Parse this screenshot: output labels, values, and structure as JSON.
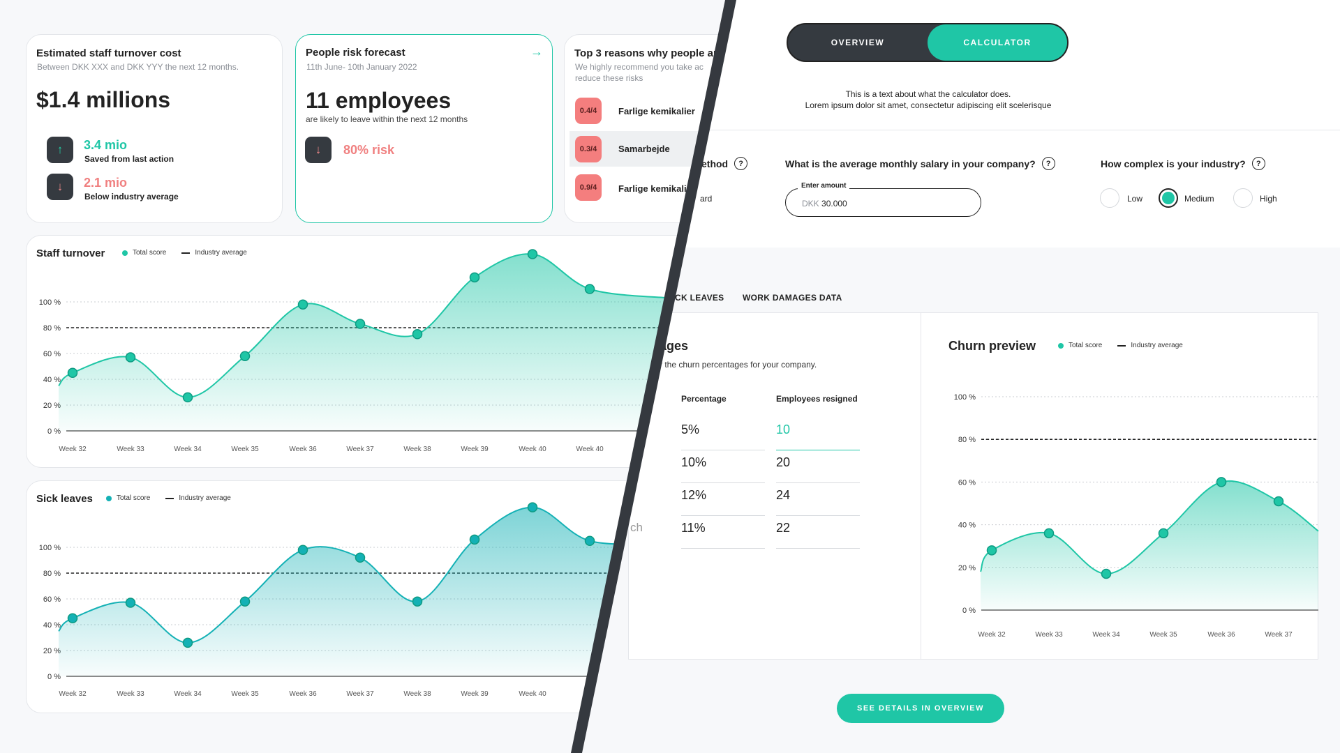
{
  "cards": {
    "turnover": {
      "title": "Estimated staff turnover cost",
      "subtitle": "Between DKK XXX and DKK YYY the next 12 months.",
      "value": "$1.4 millions",
      "saved": {
        "value": "3.4 mio",
        "label": "Saved from last action",
        "icon": "arrow-up-icon"
      },
      "below": {
        "value": "2.1 mio",
        "label": "Below industry average",
        "icon": "arrow-down-icon"
      }
    },
    "forecast": {
      "title": "People risk forecast",
      "subtitle": "11th June- 10th January 2022",
      "value": "11 employees",
      "desc": "are likely to leave within the next 12 months",
      "risk": "80% risk",
      "icon": "arrow-right-icon"
    },
    "reasons": {
      "title": "Top 3 reasons why people ar",
      "subtitle_1": "We highly recommend you take ac",
      "subtitle_2": "reduce these risks",
      "items": [
        {
          "score": "0.4/4",
          "label": "Farlige kemikalier"
        },
        {
          "score": "0.3/4",
          "label": "Samarbejde"
        },
        {
          "score": "0.9/4",
          "label": "Farlige kemikali"
        }
      ]
    }
  },
  "legend": {
    "total": "Total score",
    "industry": "Industry average"
  },
  "chart_data": [
    {
      "type": "area",
      "title": "Staff turnover",
      "categories": [
        "Week 32",
        "Week 33",
        "Week 34",
        "Week 35",
        "Week 36",
        "Week 37",
        "Week 38",
        "Week 39",
        "Week 40",
        "Week 40"
      ],
      "y_tick_labels": [
        "100 %",
        "80 %",
        "60 %",
        "40 %",
        "20 %",
        "0 %"
      ],
      "series": [
        {
          "name": "Total score",
          "values": [
            45,
            57,
            26,
            58,
            98,
            83,
            75,
            119,
            137,
            110
          ]
        }
      ],
      "industry_average": 80,
      "ylim": [
        0,
        140
      ],
      "color": "#1fc6a6"
    },
    {
      "type": "area",
      "title": "Sick leaves",
      "categories": [
        "Week 32",
        "Week 33",
        "Week 34",
        "Week 35",
        "Week 36",
        "Week 37",
        "Week 38",
        "Week 39",
        "Week 40",
        "W"
      ],
      "y_tick_labels": [
        "100 %",
        "80 %",
        "60 %",
        "40 %",
        "20 %",
        "0 %"
      ],
      "series": [
        {
          "name": "Total score",
          "values": [
            45,
            57,
            26,
            58,
            98,
            92,
            58,
            106,
            131,
            105
          ]
        }
      ],
      "industry_average": 80,
      "ylim": [
        0,
        140
      ],
      "color": "#14b1b5"
    },
    {
      "type": "area",
      "title": "Churn preview",
      "categories": [
        "Week 32",
        "Week 33",
        "Week 34",
        "Week 35",
        "Week 36",
        "Week 37"
      ],
      "y_tick_labels": [
        "100 %",
        "80 %",
        "60 %",
        "40 %",
        "20 %",
        "0 %"
      ],
      "series": [
        {
          "name": "Total score",
          "values": [
            28,
            36,
            17,
            36,
            60,
            51
          ]
        }
      ],
      "industry_average": 80,
      "ylim": [
        0,
        100
      ],
      "color": "#1fc6a6"
    }
  ],
  "calculator": {
    "toggle": {
      "overview": "OVERVIEW",
      "calculator": "CALCULATOR"
    },
    "intro_1": "This is a text about what the calculator does.",
    "intro_2": "Lorem ipsum dolor sit amet, consectetur adipiscing elit scelerisque",
    "method_label": "ethod",
    "method_value": "ard",
    "salary_question": "What is the average monthly salary in your company?",
    "amount_label": "Enter amount",
    "amount_currency": "DKK",
    "amount_value": "30.000",
    "complexity_question": "How complex is your industry?",
    "complexity_options": [
      "Low",
      "Medium",
      "High"
    ],
    "complexity_selected": "Medium",
    "tabs": [
      "CK LEAVES",
      "WORK DAMAGES DATA"
    ],
    "section_title": "ages",
    "section_sub": "r the churn percentages for your company.",
    "side_label": "ch",
    "table": {
      "headers": [
        "Percentage",
        "Employees resigned"
      ],
      "rows": [
        [
          "5%",
          "10"
        ],
        [
          "10%",
          "20"
        ],
        [
          "12%",
          "24"
        ],
        [
          "11%",
          "22"
        ]
      ]
    },
    "cta": "SEE DETAILS IN OVERVIEW"
  }
}
